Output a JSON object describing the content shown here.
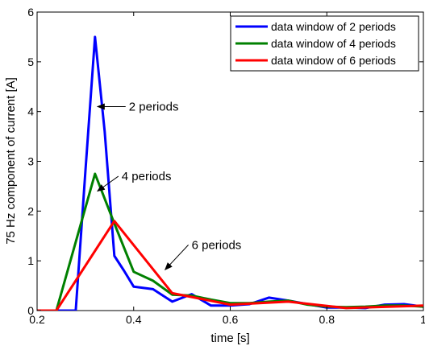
{
  "chart_data": {
    "type": "line",
    "xlabel": "time [s]",
    "ylabel": "75 Hz component of current [A]",
    "xlim": [
      0.2,
      1.0
    ],
    "ylim": [
      0,
      6
    ],
    "grid": false,
    "legend_position": "top-right",
    "x_ticks": [
      "0.2",
      "0.4",
      "0.6",
      "0.8",
      "1"
    ],
    "y_ticks": [
      "0",
      "1",
      "2",
      "3",
      "4",
      "5",
      "6"
    ],
    "series": [
      {
        "name": "data window of 2 periods",
        "color": "#0000ff",
        "points": [
          [
            0.2,
            0
          ],
          [
            0.28,
            0
          ],
          [
            0.3,
            2.8
          ],
          [
            0.32,
            5.5
          ],
          [
            0.34,
            3.6
          ],
          [
            0.36,
            1.1
          ],
          [
            0.38,
            0.8
          ],
          [
            0.4,
            0.48
          ],
          [
            0.44,
            0.43
          ],
          [
            0.48,
            0.18
          ],
          [
            0.52,
            0.33
          ],
          [
            0.56,
            0.1
          ],
          [
            0.6,
            0.1
          ],
          [
            0.64,
            0.13
          ],
          [
            0.68,
            0.26
          ],
          [
            0.72,
            0.2
          ],
          [
            0.76,
            0.13
          ],
          [
            0.8,
            0.06
          ],
          [
            0.84,
            0.06
          ],
          [
            0.88,
            0.05
          ],
          [
            0.92,
            0.12
          ],
          [
            0.96,
            0.13
          ],
          [
            1.0,
            0.08
          ]
        ]
      },
      {
        "name": "data window of 4 periods",
        "color": "#008000",
        "points": [
          [
            0.2,
            0
          ],
          [
            0.24,
            0
          ],
          [
            0.32,
            2.75
          ],
          [
            0.36,
            1.75
          ],
          [
            0.4,
            0.78
          ],
          [
            0.44,
            0.6
          ],
          [
            0.48,
            0.32
          ],
          [
            0.52,
            0.3
          ],
          [
            0.56,
            0.22
          ],
          [
            0.6,
            0.15
          ],
          [
            0.64,
            0.15
          ],
          [
            0.68,
            0.18
          ],
          [
            0.72,
            0.2
          ],
          [
            0.76,
            0.12
          ],
          [
            0.8,
            0.08
          ],
          [
            0.84,
            0.07
          ],
          [
            0.88,
            0.08
          ],
          [
            0.92,
            0.1
          ],
          [
            0.96,
            0.1
          ],
          [
            1.0,
            0.08
          ]
        ]
      },
      {
        "name": "data window of 6 periods",
        "color": "#ff0000",
        "points": [
          [
            0.2,
            0
          ],
          [
            0.24,
            0
          ],
          [
            0.36,
            1.8
          ],
          [
            0.48,
            0.35
          ],
          [
            0.6,
            0.12
          ],
          [
            0.72,
            0.18
          ],
          [
            0.84,
            0.05
          ],
          [
            1.0,
            0.1
          ]
        ]
      }
    ],
    "annotations": [
      {
        "text": "2 periods",
        "target": [
          0.325,
          4.1
        ],
        "text_at": [
          0.39,
          4.1
        ]
      },
      {
        "text": "4 periods",
        "target": [
          0.325,
          2.4
        ],
        "text_at": [
          0.375,
          2.7
        ]
      },
      {
        "text": "6 periods",
        "target": [
          0.465,
          0.82
        ],
        "text_at": [
          0.52,
          1.32
        ]
      }
    ]
  }
}
